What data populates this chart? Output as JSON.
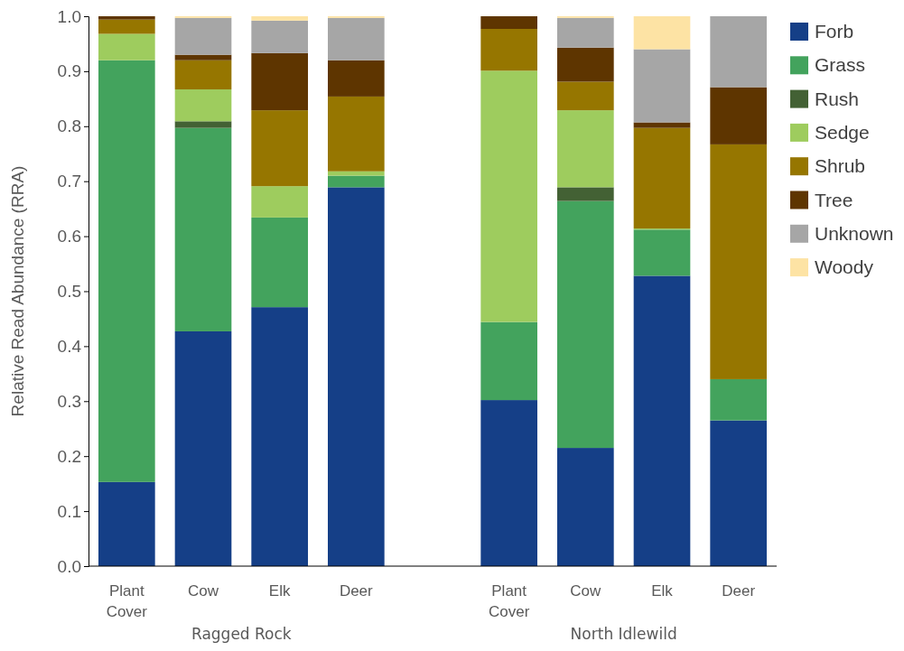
{
  "chart_data": {
    "type": "bar",
    "stacked": true,
    "ylabel": "Relative Read Abundance (RRA)",
    "categories": [
      "Plant\nCover",
      "Cow",
      "Elk",
      "Deer",
      null,
      "Plant\nCover",
      "Cow",
      "Elk",
      "Deer"
    ],
    "annotations": [
      "Ragged Rock",
      "North Idlewild"
    ],
    "ylim": [
      0,
      1
    ],
    "yticks": [
      {
        "value": 0,
        "label": "0.0"
      },
      {
        "value": 0.1,
        "label": "0.1"
      },
      {
        "value": 0.2,
        "label": "0.2"
      },
      {
        "value": 0.3,
        "label": "0.3"
      },
      {
        "value": 0.4,
        "label": "0.4"
      },
      {
        "value": 0.5,
        "label": "0.5"
      },
      {
        "value": 0.6,
        "label": "0.6"
      },
      {
        "value": 0.7,
        "label": "0.7"
      },
      {
        "value": 0.8,
        "label": "0.8"
      },
      {
        "value": 0.9,
        "label": "0.9"
      },
      {
        "value": 1,
        "label": "1.0"
      }
    ],
    "grid": false,
    "legend": "right",
    "series": [
      {
        "name": "Forb",
        "color": "#153f87",
        "values": [
          0.153,
          0.427,
          0.471,
          0.689,
          null,
          0.302,
          0.215,
          0.528,
          0.265
        ]
      },
      {
        "name": "Grass",
        "color": "#43a35d",
        "values": [
          0.767,
          0.37,
          0.163,
          0.021,
          null,
          0.142,
          0.449,
          0.084,
          0.075
        ]
      },
      {
        "name": "Rush",
        "color": "#436134",
        "values": [
          0,
          0.012,
          0,
          0,
          null,
          0,
          0.025,
          0,
          0
        ]
      },
      {
        "name": "Sedge",
        "color": "#9ecc5e",
        "values": [
          0.048,
          0.058,
          0.057,
          0.008,
          null,
          0.457,
          0.14,
          0.002,
          0
        ]
      },
      {
        "name": "Shrub",
        "color": "#967600",
        "values": [
          0.026,
          0.053,
          0.138,
          0.136,
          null,
          0.076,
          0.052,
          0.183,
          0.427
        ]
      },
      {
        "name": "Tree",
        "color": "#5e3500",
        "values": [
          0.006,
          0.01,
          0.104,
          0.066,
          null,
          0.023,
          0.062,
          0.01,
          0.104
        ]
      },
      {
        "name": "Unknown",
        "color": "#a6a6a6",
        "values": [
          0,
          0.067,
          0.059,
          0.077,
          null,
          0,
          0.054,
          0.133,
          0.129
        ]
      },
      {
        "name": "Woody",
        "color": "#fde3a4",
        "values": [
          0,
          0.003,
          0.008,
          0.003,
          null,
          0,
          0.003,
          0.06,
          0
        ]
      }
    ]
  }
}
